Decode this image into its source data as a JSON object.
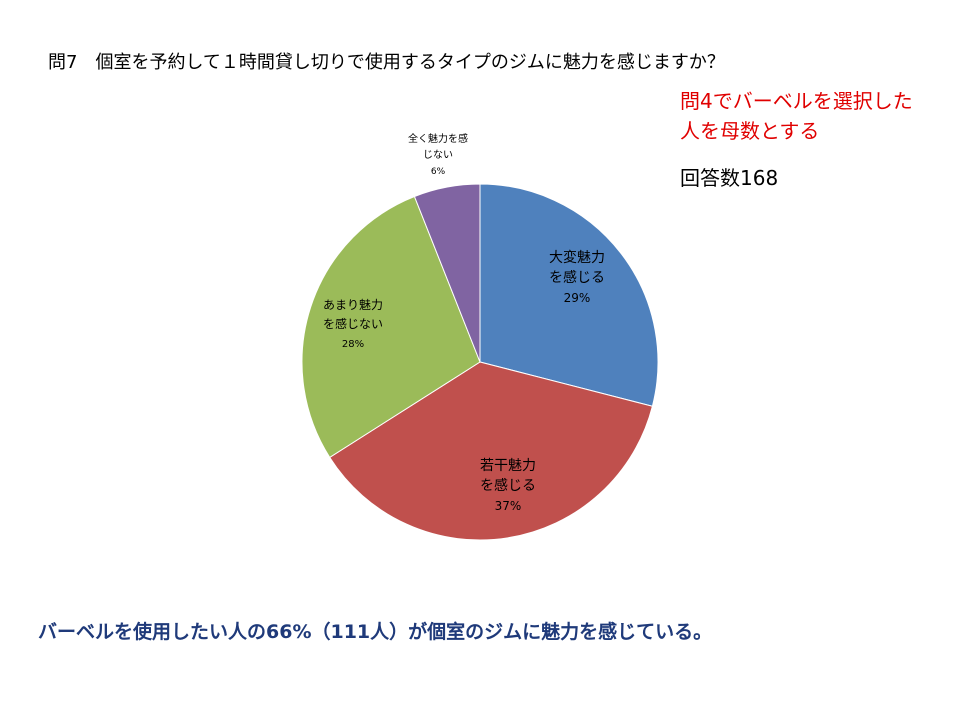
{
  "question": "問7　個室を予約して１時間貸し切りで使用するタイプのジムに魅力を感じますか？",
  "note": {
    "line1": "問4でバーベルを選択した",
    "line2": "人を母数とする"
  },
  "responses": "回答数168",
  "conclusion": "バーベルを使用したい人の66%（111人）が個室のジムに魅力を感じている。",
  "colors": {
    "blue": "#4f81bd",
    "red": "#c0504d",
    "green": "#9bbb59",
    "purple": "#8064a2",
    "note_red": "#e00000",
    "conclusion_navy": "#1f3a7a"
  },
  "chart_data": {
    "type": "pie",
    "slices": [
      {
        "label_lines": [
          "大変魅力",
          "を感じる"
        ],
        "value": 29,
        "value_label": "29%",
        "color": "#4f81bd"
      },
      {
        "label_lines": [
          "若干魅力",
          "を感じる"
        ],
        "value": 37,
        "value_label": "37%",
        "color": "#c0504d"
      },
      {
        "label_lines": [
          "あまり魅力",
          "を感じない"
        ],
        "value": 28,
        "value_label": "28%",
        "color": "#9bbb59"
      },
      {
        "label_lines": [
          "全く魅力を感",
          "じない"
        ],
        "value": 6,
        "value_label": "6%",
        "color": "#8064a2"
      }
    ]
  }
}
